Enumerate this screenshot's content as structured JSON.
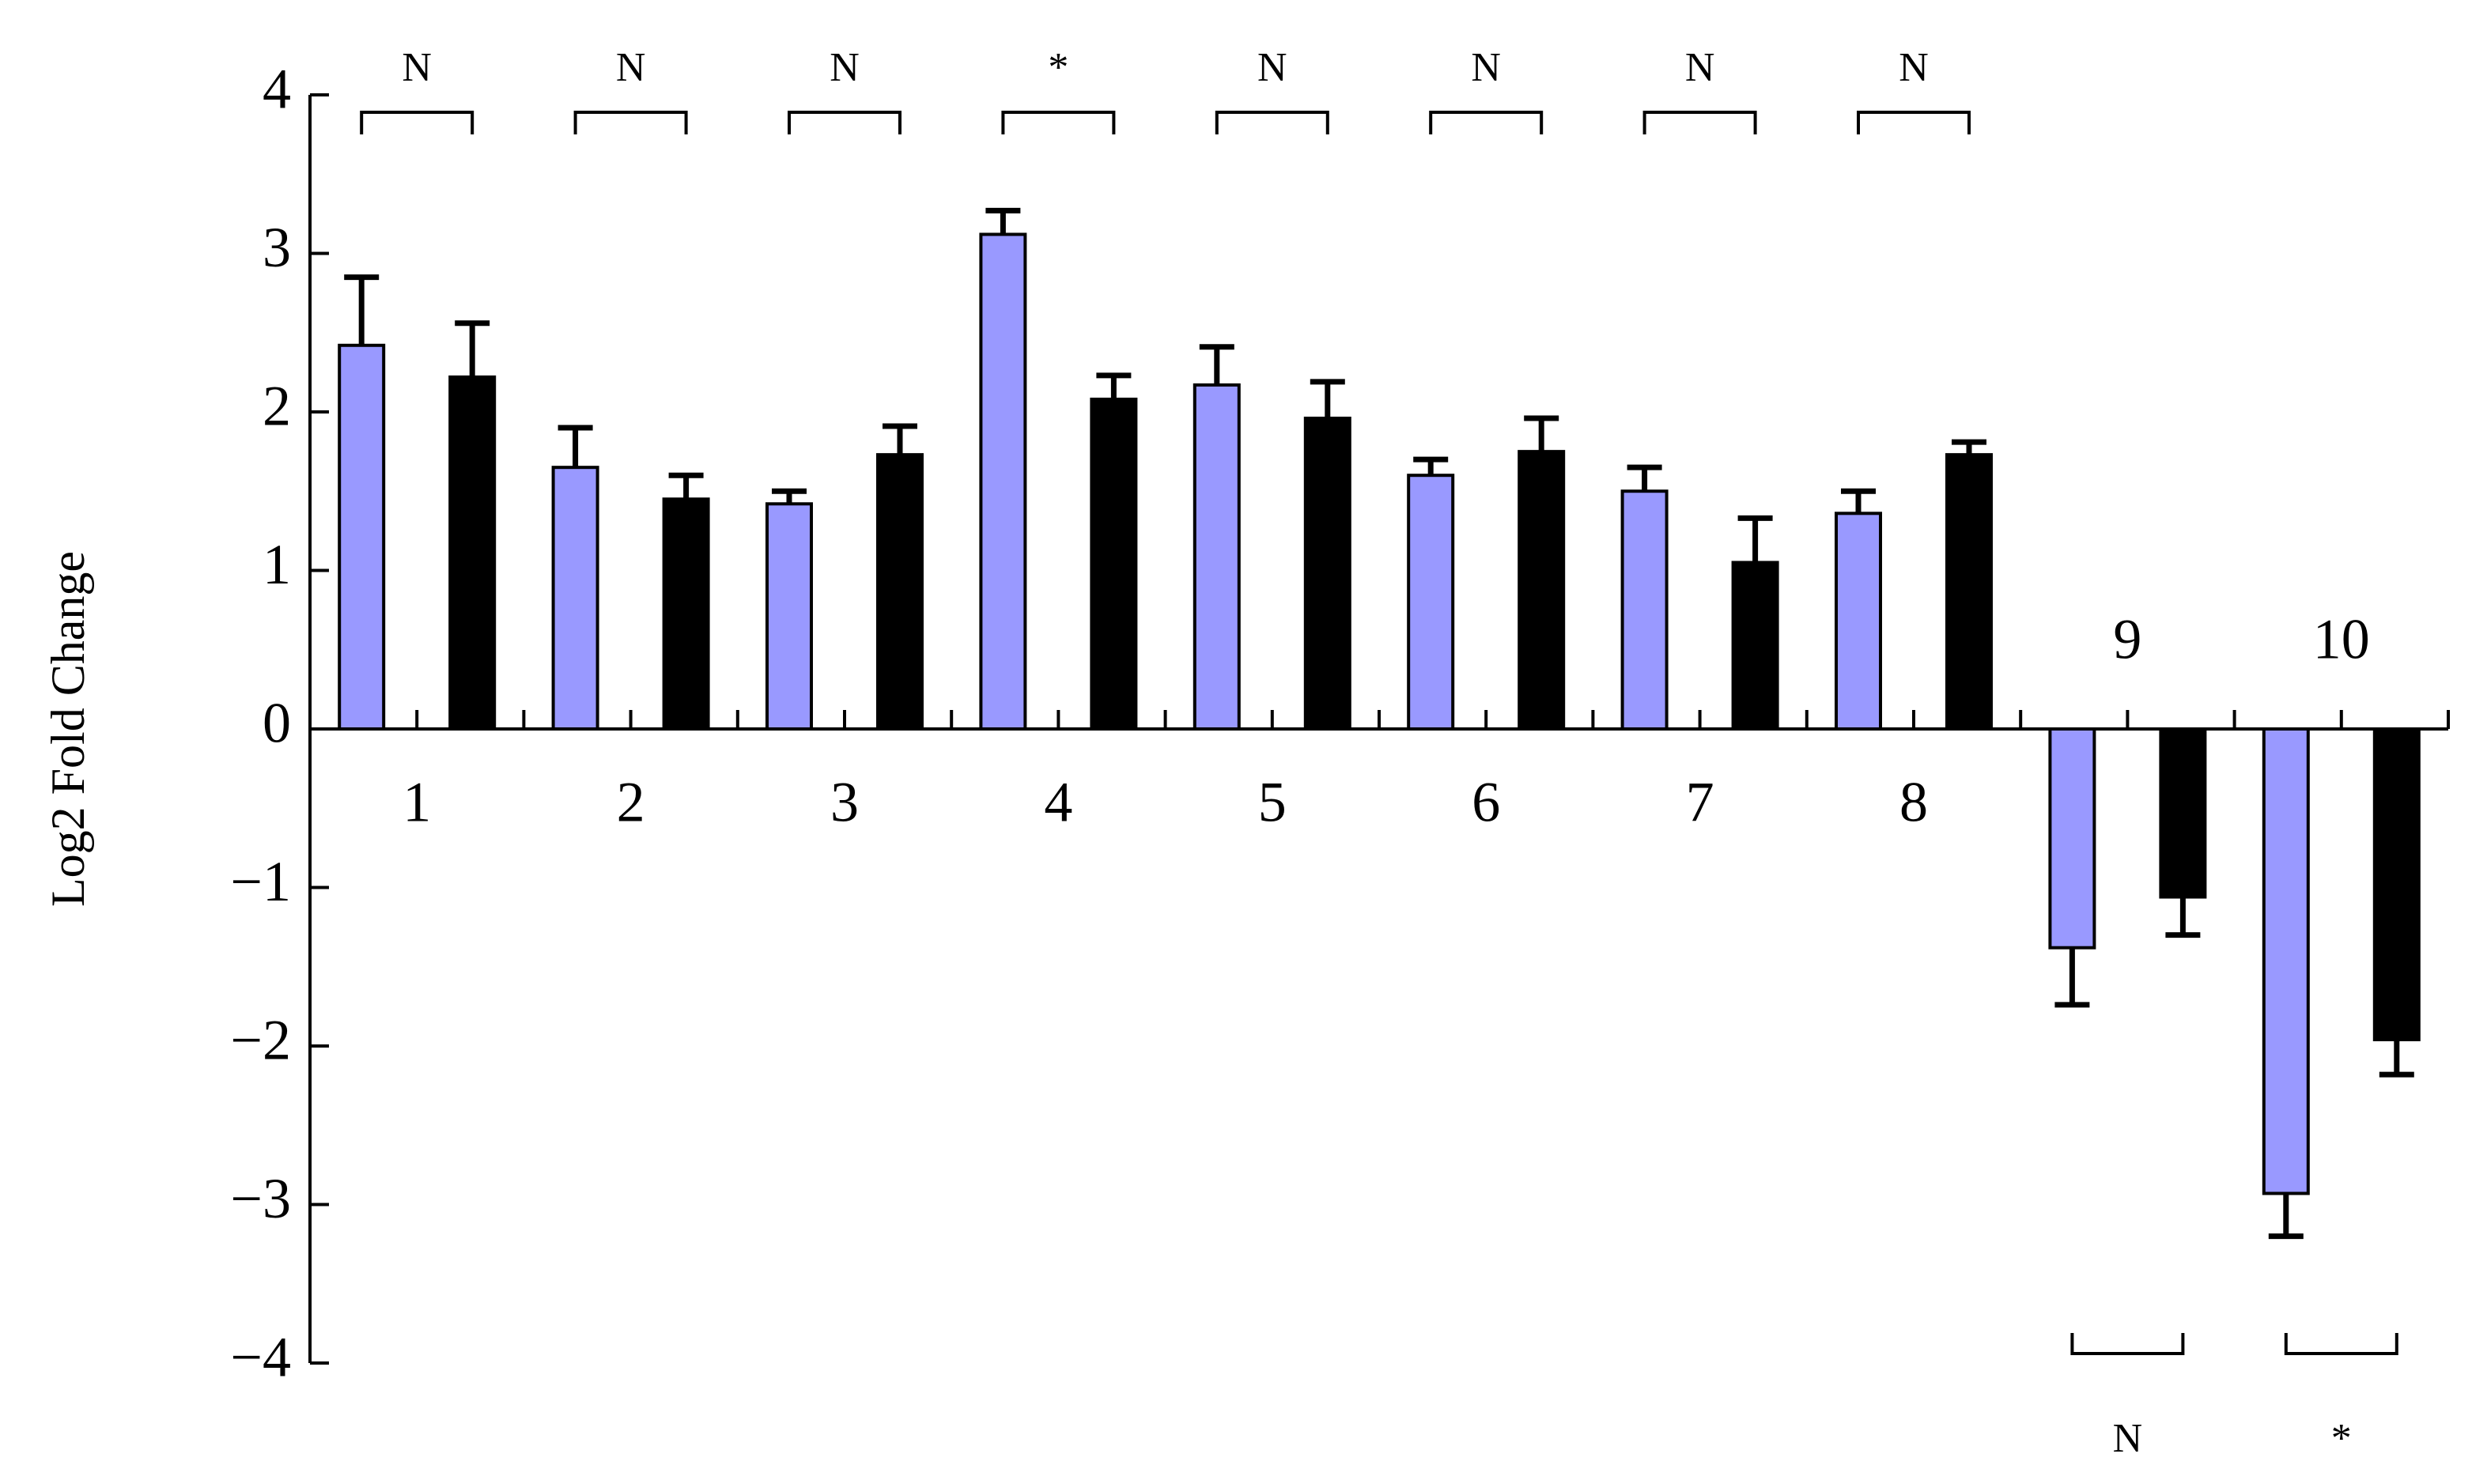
{
  "chart_data": {
    "type": "bar",
    "y_label": "Log2 Fold Change",
    "categories": [
      "1",
      "2",
      "3",
      "4",
      "5",
      "6",
      "7",
      "8",
      "9",
      "10"
    ],
    "series": [
      {
        "color": "#9999ff",
        "values": [
          2.42,
          1.65,
          1.42,
          3.12,
          2.17,
          1.6,
          1.5,
          1.36,
          -1.38,
          -2.93
        ],
        "errors": [
          0.43,
          0.25,
          0.08,
          0.15,
          0.24,
          0.1,
          0.15,
          0.14,
          0.36,
          0.27
        ]
      },
      {
        "color": "#000000",
        "values": [
          2.22,
          1.45,
          1.73,
          2.08,
          1.96,
          1.75,
          1.05,
          1.73,
          -1.06,
          -1.96
        ],
        "errors": [
          0.34,
          0.15,
          0.18,
          0.15,
          0.23,
          0.21,
          0.28,
          0.08,
          0.24,
          0.22
        ]
      }
    ],
    "significance": [
      "N",
      "N",
      "N",
      "*",
      "N",
      "N",
      "N",
      "N",
      "N",
      "*"
    ],
    "ylim": [
      -4,
      4
    ],
    "yticks": [
      {
        "value": -4,
        "label": "−4"
      },
      {
        "value": -3,
        "label": "−3"
      },
      {
        "value": -2,
        "label": "−2"
      },
      {
        "value": -1,
        "label": "−1"
      },
      0,
      1,
      2,
      3,
      4
    ]
  }
}
